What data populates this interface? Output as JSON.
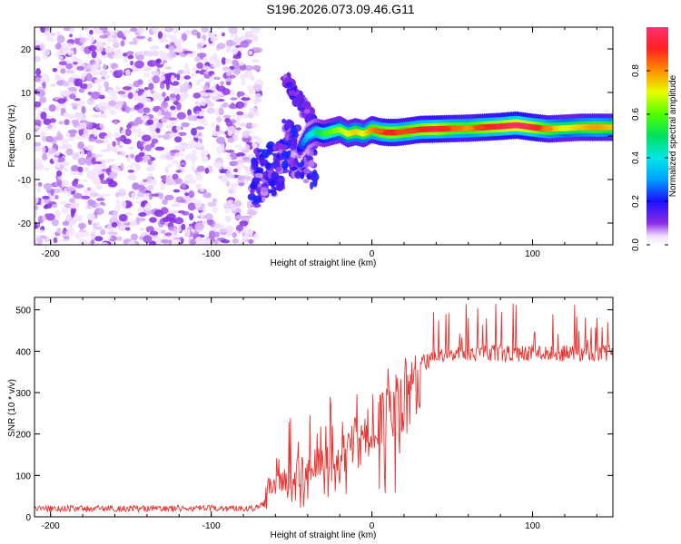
{
  "title": "S196.2026.073.09.46.G11",
  "chart_data": [
    {
      "type": "heatmap",
      "xlabel": "Height of straight line (km)",
      "ylabel": "Frequency (Hz)",
      "xlim": [
        -210,
        150
      ],
      "ylim": [
        -25,
        25
      ],
      "xticks": [
        -200,
        -100,
        0,
        100
      ],
      "yticks": [
        -20,
        -10,
        0,
        10,
        20
      ],
      "xtick_labels": [
        "-200",
        "-100",
        "0",
        "100"
      ],
      "ytick_labels": [
        "-20",
        "-10",
        "0",
        "10",
        "20"
      ],
      "colorbar": {
        "label": "Normalized spectral amplitude",
        "range": [
          0,
          1
        ],
        "ticks": [
          0.0,
          0.2,
          0.4,
          0.6,
          0.8
        ],
        "tick_labels": [
          "0.0",
          "0.2",
          "0.4",
          "0.6",
          "0.8"
        ]
      },
      "ridge": {
        "x": [
          -45,
          -40,
          -35,
          -30,
          -25,
          -20,
          -15,
          -10,
          -5,
          0,
          5,
          10,
          15,
          20,
          30,
          40,
          50,
          60,
          70,
          80,
          90,
          100,
          110,
          120,
          130,
          140,
          150
        ],
        "frequency": [
          -3,
          0,
          1,
          0.5,
          1,
          1.5,
          0.5,
          1,
          0.5,
          1.5,
          1,
          0.8,
          0.8,
          1,
          1.5,
          1.6,
          1.7,
          1.8,
          2,
          2.2,
          2.5,
          2,
          1.6,
          1.8,
          2,
          2,
          2
        ],
        "amplitude": [
          0.2,
          0.35,
          0.45,
          0.55,
          0.6,
          0.65,
          0.7,
          0.75,
          0.7,
          0.8,
          0.85,
          0.9,
          0.9,
          0.85,
          0.9,
          0.95,
          0.85,
          0.8,
          0.9,
          0.95,
          1.0,
          0.95,
          0.8,
          0.7,
          0.75,
          0.8,
          0.75
        ]
      }
    },
    {
      "type": "line",
      "xlabel": "Height of straight line (km)",
      "ylabel": "SNR (10 * v/v)",
      "xlim": [
        -210,
        150
      ],
      "ylim": [
        0,
        530
      ],
      "xticks": [
        -200,
        -100,
        0,
        100
      ],
      "yticks": [
        0,
        100,
        200,
        300,
        400,
        500
      ],
      "xtick_labels": [
        "-200",
        "-100",
        "0",
        "100"
      ],
      "ytick_labels": [
        "0",
        "100",
        "200",
        "300",
        "400",
        "500"
      ],
      "series": [
        {
          "name": "SNR",
          "color": "#e8322f",
          "x": [
            -210,
            -150,
            -100,
            -70,
            -65,
            -55,
            -45,
            -35,
            -25,
            -20,
            -15,
            -10,
            -5,
            0,
            10,
            20,
            30,
            40,
            60,
            80,
            100,
            120,
            150
          ],
          "y": [
            20,
            20,
            20,
            22,
            85,
            110,
            130,
            150,
            160,
            180,
            210,
            230,
            250,
            270,
            300,
            340,
            370,
            385,
            395,
            395,
            395,
            395,
            395
          ]
        }
      ]
    }
  ]
}
